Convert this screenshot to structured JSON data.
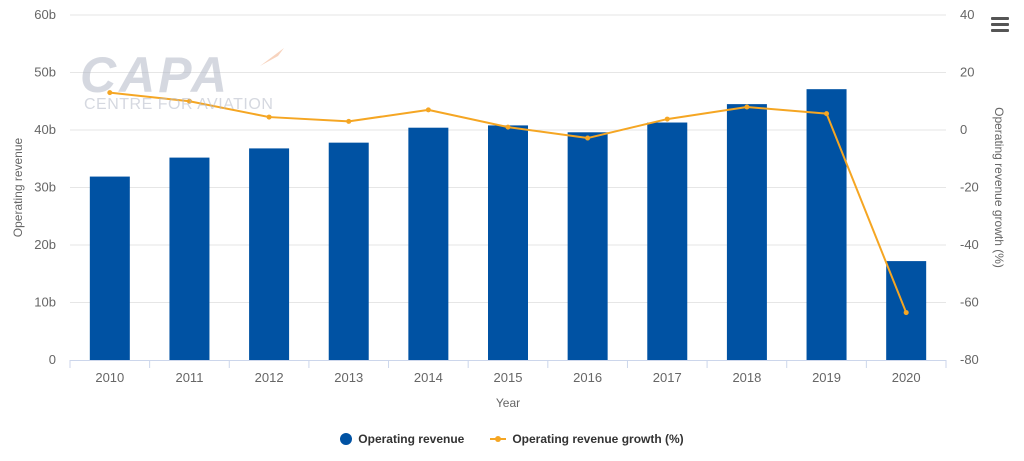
{
  "chart_data": {
    "type": "bar",
    "title": "",
    "xlabel": "Year",
    "ylabel": "Operating revenue",
    "y2label": "Operating revenue growth (%)",
    "categories": [
      "2010",
      "2011",
      "2012",
      "2013",
      "2014",
      "2015",
      "2016",
      "2017",
      "2018",
      "2019",
      "2020"
    ],
    "series": [
      {
        "name": "Operating revenue",
        "type": "bar",
        "axis": "left",
        "color": "#0052a3",
        "values": [
          31.9,
          35.2,
          36.8,
          37.8,
          40.4,
          40.8,
          39.6,
          41.3,
          44.5,
          47.1,
          17.2
        ]
      },
      {
        "name": "Operating revenue growth (%)",
        "type": "line",
        "axis": "right",
        "color": "#f5a623",
        "values": [
          13,
          10,
          4.5,
          3,
          7,
          1,
          -2.8,
          3.8,
          8,
          5.7,
          -63.5
        ]
      }
    ],
    "ylim": [
      0,
      60
    ],
    "yticks": [
      0,
      10,
      20,
      30,
      40,
      50,
      60
    ],
    "yticklabels": [
      "0",
      "10b",
      "20b",
      "30b",
      "40b",
      "50b",
      "60b"
    ],
    "y2lim": [
      -80,
      40
    ],
    "y2ticks": [
      -80,
      -60,
      -40,
      -20,
      0,
      20,
      40
    ],
    "y2ticklabels": [
      "-80",
      "-60",
      "-40",
      "-20",
      "0",
      "20",
      "40"
    ],
    "grid": true,
    "legend": "bottom-center"
  },
  "watermark": {
    "main": "CAPA",
    "sub": "CENTRE FOR AVIATION"
  },
  "colors": {
    "grid": "#e6e6e6",
    "axis_text": "#666666",
    "baseline": "#ccd6eb"
  },
  "toolbar": {
    "menu_icon": "hamburger-menu-icon"
  }
}
